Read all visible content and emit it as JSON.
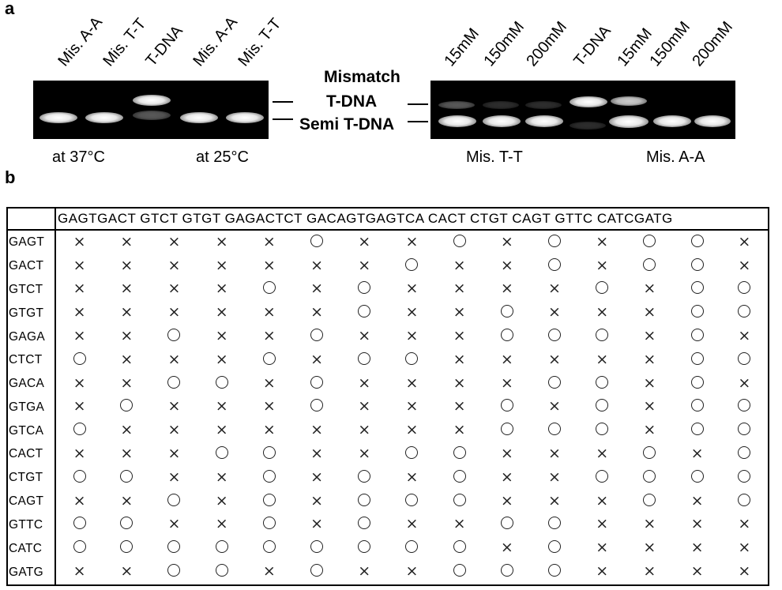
{
  "panel_a": {
    "label": "a",
    "left_gel": {
      "lanes": [
        "Mis. A-A",
        "Mis. T-T",
        "T-DNA",
        "Mis. A-A",
        "Mis. T-T"
      ],
      "captions": [
        "at 37°C",
        "at 25°C"
      ]
    },
    "right_gel": {
      "lanes": [
        "15mM",
        "150mM",
        "200mM",
        "T-DNA",
        "15mM",
        "150mM",
        "200mM"
      ],
      "captions": [
        "Mis. T-T",
        "Mis. A-A"
      ]
    },
    "band_labels": {
      "line1": "Mismatch",
      "line2": "T-DNA",
      "line3": "Semi T-DNA"
    }
  },
  "panel_b": {
    "label": "b",
    "column_header": "GAGTGACT GTCT GTGT GAGACTCT GACAGTGAGTCA CACT CTGT CAGT GTTC CATCGATG",
    "row_labels": [
      "GAGT",
      "GACT",
      "GTCT",
      "GTGT",
      "GAGA",
      "CTCT",
      "GACA",
      "GTGA",
      "GTCA",
      "CACT",
      "CTGT",
      "CAGT",
      "GTTC",
      "CATC",
      "GATG"
    ],
    "symbols": {
      "circle": "○",
      "cross": "×"
    },
    "rows": [
      "xxxxxoxxoxoxoox",
      "xxxxxxxoxxoxoox",
      "xxxxoxoxxxxoxoo",
      "xxxxxxoxxoxxxoo",
      "xxoxxoxxxoooxox",
      "oxxxoxooxxxxxoo",
      "xxooxoxxxxooxox",
      "xoxxxoxxxoxoxoo",
      "oxxxxxxxxoooxoo",
      "xxxooxxooxxxoxo",
      "ooxxoxoxoxxoooo",
      "xxoxoxoooxxxoxo",
      "ooxxoxoxxooxxxx",
      "oooooooooxoxxxx",
      "xxooxoxxoooxxxx"
    ]
  }
}
